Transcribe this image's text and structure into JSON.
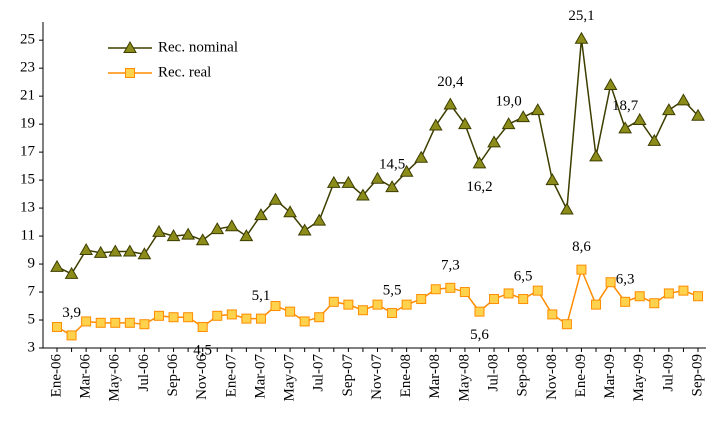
{
  "chart_data": {
    "type": "line",
    "categories": [
      "Ene-06",
      null,
      "Mar-06",
      null,
      "May-06",
      null,
      "Jul-06",
      null,
      "Sep-06",
      null,
      "Nov-06",
      null,
      "Ene-07",
      null,
      "Mar-07",
      null,
      "May-07",
      null,
      "Jul-07",
      null,
      "Sep-07",
      null,
      "Nov-07",
      null,
      "Ene-08",
      null,
      "Mar-08",
      null,
      "May-08",
      null,
      "Jul-08",
      null,
      "Sep-08",
      null,
      "Nov-08",
      null,
      "Ene-09",
      null,
      "Mar-09",
      null,
      "May-09",
      null,
      "Jul-09",
      null,
      "Sep-09"
    ],
    "series": [
      {
        "name": "Rec. nominal",
        "color": "#3d3d00",
        "marker_color": "#8c8c1a",
        "marker": "triangle",
        "values": [
          8.8,
          8.3,
          10.0,
          9.8,
          9.9,
          9.9,
          9.7,
          11.3,
          11.0,
          11.1,
          10.7,
          11.5,
          11.7,
          11.0,
          12.5,
          13.6,
          12.7,
          11.4,
          12.1,
          14.8,
          14.8,
          13.9,
          15.1,
          14.5,
          15.6,
          16.6,
          18.9,
          20.4,
          19.0,
          16.2,
          17.7,
          19.0,
          19.5,
          20.0,
          15.0,
          12.9,
          25.1,
          16.7,
          21.8,
          18.7,
          19.3,
          17.8,
          20.0,
          20.7,
          19.6
        ],
        "value_labels": [
          null,
          null,
          null,
          null,
          null,
          null,
          null,
          null,
          null,
          null,
          null,
          null,
          null,
          null,
          null,
          null,
          null,
          null,
          null,
          null,
          null,
          null,
          null,
          "14,5",
          null,
          null,
          null,
          "20,4",
          null,
          "16,2",
          null,
          "19,0",
          null,
          null,
          null,
          null,
          "25,1",
          null,
          null,
          "18,7",
          null,
          null,
          null,
          null,
          null
        ]
      },
      {
        "name": "Rec. real",
        "color": "#ff8c00",
        "marker_color": "#ffd24d",
        "marker": "square",
        "values": [
          4.5,
          3.9,
          4.9,
          4.8,
          4.8,
          4.8,
          4.7,
          5.3,
          5.2,
          5.2,
          4.5,
          5.3,
          5.4,
          5.1,
          5.1,
          6.0,
          5.6,
          4.9,
          5.2,
          6.3,
          6.1,
          5.7,
          6.1,
          5.5,
          6.1,
          6.5,
          7.2,
          7.3,
          7.0,
          5.6,
          6.5,
          6.9,
          6.5,
          7.1,
          5.4,
          4.7,
          8.6,
          6.1,
          7.7,
          6.3,
          6.7,
          6.2,
          6.9,
          7.1,
          6.7
        ],
        "value_labels": [
          null,
          "3,9",
          null,
          null,
          null,
          null,
          null,
          null,
          null,
          null,
          "4,5",
          null,
          null,
          null,
          "5,1",
          null,
          null,
          null,
          null,
          null,
          null,
          null,
          null,
          "5,5",
          null,
          null,
          null,
          "7,3",
          null,
          "5,6",
          null,
          null,
          "6,5",
          null,
          null,
          null,
          "8,6",
          null,
          null,
          "6,3",
          null,
          null,
          null,
          null,
          null
        ]
      }
    ],
    "ylim": [
      3,
      26.3
    ],
    "yticks": [
      3,
      5,
      7,
      9,
      11,
      13,
      15,
      17,
      19,
      21,
      23,
      25
    ],
    "grid": false,
    "legend": "upper left"
  }
}
